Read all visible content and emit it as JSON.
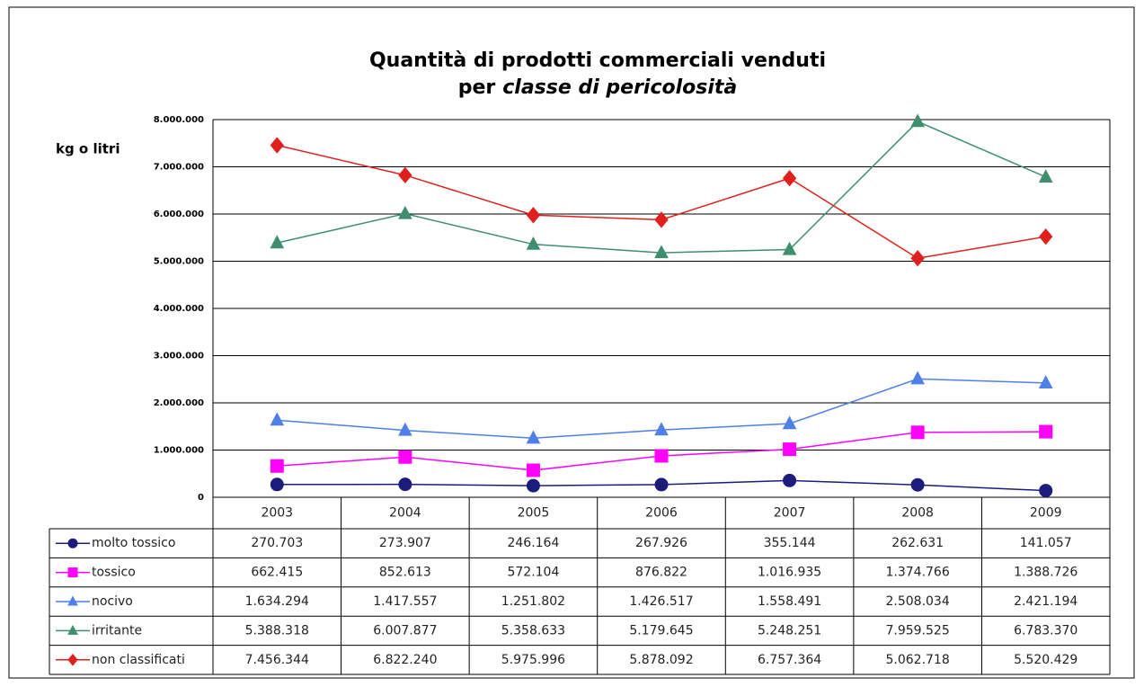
{
  "chart_data": {
    "type": "line",
    "title": [
      "Quantità di prodotti commerciali  venduti",
      "per",
      "classe di pericolosità"
    ],
    "y_label": "kg o litri",
    "categories": [
      "2003",
      "2004",
      "2005",
      "2006",
      "2007",
      "2008",
      "2009"
    ],
    "ylim": [
      0,
      8000000
    ],
    "yticks": [
      0,
      {
        "value": 1000000,
        "label": "1.000.000"
      },
      {
        "value": 2000000,
        "label": "2.000.000"
      },
      {
        "value": 3000000,
        "label": "3.000.000"
      },
      {
        "value": 4000000,
        "label": "4.000.000"
      },
      {
        "value": 5000000,
        "label": "5.000.000"
      },
      {
        "value": 6000000,
        "label": "6.000.000"
      },
      {
        "value": 7000000,
        "label": "7.000.000"
      },
      {
        "value": 8000000,
        "label": "8.000.000"
      }
    ],
    "grid": true,
    "series": [
      {
        "name": "molto tossico",
        "color": "#1c1c7c",
        "marker": "circle",
        "values": [
          270703,
          273907,
          246164,
          267926,
          355144,
          262631,
          141057
        ],
        "value_labels": [
          "270.703",
          "273.907",
          "246.164",
          "267.926",
          "355.144",
          "262.631",
          "141.057"
        ]
      },
      {
        "name": "tossico",
        "color": "#ff00ff",
        "marker": "square",
        "values": [
          662415,
          852613,
          572104,
          876822,
          1016935,
          1374766,
          1388726
        ],
        "value_labels": [
          "662.415",
          "852.613",
          "572.104",
          "876.822",
          "1.016.935",
          "1.374.766",
          "1.388.726"
        ]
      },
      {
        "name": "nocivo",
        "color": "#4f7fe8",
        "marker": "triangle",
        "values": [
          1634294,
          1417557,
          1251802,
          1426517,
          1558491,
          2508034,
          2421194
        ],
        "value_labels": [
          "1.634.294",
          "1.417.557",
          "1.251.802",
          "1.426.517",
          "1.558.491",
          "2.508.034",
          "2.421.194"
        ]
      },
      {
        "name": "irritante",
        "color": "#3f8f6f",
        "marker": "triangle",
        "values": [
          5388318,
          6007877,
          5358633,
          5179645,
          5248251,
          7959525,
          6783370
        ],
        "value_labels": [
          "5.388.318",
          "6.007.877",
          "5.358.633",
          "5.179.645",
          "5.248.251",
          "7.959.525",
          "6.783.370"
        ]
      },
      {
        "name": "non classificati",
        "color": "#e0201c",
        "marker": "diamond",
        "values": [
          7456344,
          6822240,
          5975996,
          5878092,
          6757364,
          5062718,
          5520429
        ],
        "value_labels": [
          "7.456.344",
          "6.822.240",
          "5.975.996",
          "5.878.092",
          "6.757.364",
          "5.062.718",
          "5.520.429"
        ]
      }
    ]
  }
}
